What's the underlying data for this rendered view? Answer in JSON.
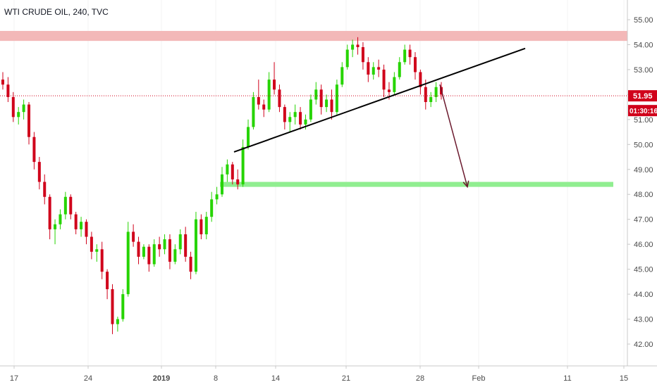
{
  "header": {
    "title": "WTI CRUDE OIL, 240, TVC"
  },
  "colors": {
    "up": "#26d400",
    "down": "#d0021b",
    "resistance_zone": "#f3b8b8",
    "target_zone": "#90ee90",
    "price_line": "#d0021b",
    "trendline": "#000000",
    "arrow": "#6b1a2e"
  },
  "chart_data": {
    "type": "candlestick",
    "title": "WTI CRUDE OIL, 240, TVC",
    "xlabel": "",
    "ylabel": "",
    "ylim": [
      41.4,
      55.4
    ],
    "y_ticks": [
      "55.00",
      "54.00",
      "53.00",
      "52.00",
      "51.00",
      "50.00",
      "49.00",
      "48.00",
      "47.00",
      "46.00",
      "45.00",
      "44.00",
      "43.00",
      "42.00"
    ],
    "x_ticks": [
      "17",
      "24",
      "2019",
      "8",
      "14",
      "21",
      "28",
      "Feb",
      "11",
      "15"
    ],
    "bold_x_ticks": [
      "2019"
    ],
    "last_price": "51.95",
    "countdown": "01:30:16",
    "resistance_zone": [
      54.15,
      54.55
    ],
    "target_zone": [
      48.3,
      48.5
    ],
    "trendline": {
      "start": [
        "Jan 9",
        49.7
      ],
      "end": [
        "Feb 13",
        53.85
      ]
    },
    "projection_arrow": {
      "start": [
        "Jan 30",
        52.4
      ],
      "end": [
        "Feb 3",
        48.3
      ]
    },
    "series": [
      {
        "ohlc": [
          [
            52.6,
            52.9,
            52.2,
            52.4
          ],
          [
            52.4,
            52.7,
            51.7,
            51.9
          ],
          [
            51.9,
            52.1,
            50.9,
            51.1
          ],
          [
            51.1,
            51.5,
            50.8,
            51.3
          ],
          [
            51.3,
            51.8,
            51.0,
            51.6
          ],
          [
            51.6,
            51.7,
            50.0,
            50.3
          ],
          [
            50.3,
            50.5,
            49.0,
            49.3
          ],
          [
            49.3,
            49.5,
            48.2,
            48.5
          ],
          [
            48.5,
            48.8,
            47.6,
            47.9
          ],
          [
            47.9,
            48.0,
            46.2,
            46.6
          ],
          [
            46.6,
            47.0,
            46.0,
            46.8
          ],
          [
            46.8,
            47.4,
            46.6,
            47.2
          ],
          [
            47.2,
            48.1,
            47.0,
            47.9
          ],
          [
            47.9,
            48.0,
            47.0,
            47.2
          ],
          [
            47.2,
            47.3,
            46.4,
            46.6
          ],
          [
            46.6,
            47.1,
            46.3,
            46.9
          ],
          [
            46.9,
            47.0,
            46.0,
            46.3
          ],
          [
            46.3,
            46.5,
            45.4,
            45.7
          ],
          [
            45.7,
            46.0,
            45.3,
            45.8
          ],
          [
            45.8,
            46.1,
            44.6,
            44.9
          ],
          [
            44.9,
            45.0,
            43.8,
            44.2
          ],
          [
            44.2,
            44.4,
            42.4,
            42.8
          ],
          [
            42.8,
            43.1,
            42.5,
            43.0
          ],
          [
            43.0,
            44.2,
            42.9,
            44.0
          ],
          [
            44.0,
            46.9,
            43.9,
            46.5
          ],
          [
            46.5,
            46.8,
            45.9,
            46.1
          ],
          [
            46.1,
            46.3,
            45.2,
            45.5
          ],
          [
            45.5,
            46.0,
            45.4,
            45.9
          ],
          [
            45.9,
            46.0,
            44.9,
            45.2
          ],
          [
            45.2,
            46.2,
            45.1,
            46.0
          ],
          [
            46.0,
            46.3,
            45.5,
            45.8
          ],
          [
            45.8,
            46.4,
            45.6,
            46.2
          ],
          [
            46.2,
            46.4,
            45.0,
            45.3
          ],
          [
            45.3,
            46.0,
            45.2,
            45.8
          ],
          [
            45.8,
            46.6,
            45.6,
            46.4
          ],
          [
            46.4,
            46.7,
            45.3,
            45.5
          ],
          [
            45.5,
            45.7,
            44.6,
            44.9
          ],
          [
            44.9,
            47.3,
            44.8,
            47.0
          ],
          [
            47.0,
            47.2,
            46.2,
            46.4
          ],
          [
            46.4,
            47.3,
            46.2,
            47.1
          ],
          [
            47.1,
            48.1,
            46.9,
            47.8
          ],
          [
            47.8,
            48.3,
            47.6,
            48.0
          ],
          [
            48.0,
            49.1,
            47.9,
            48.8
          ],
          [
            48.8,
            49.4,
            48.5,
            49.2
          ],
          [
            49.2,
            49.3,
            48.4,
            48.6
          ],
          [
            48.6,
            49.0,
            48.2,
            48.4
          ],
          [
            48.4,
            50.2,
            48.3,
            49.9
          ],
          [
            49.9,
            51.0,
            49.8,
            50.7
          ],
          [
            50.7,
            52.1,
            50.6,
            51.9
          ],
          [
            51.9,
            52.6,
            51.4,
            51.6
          ],
          [
            51.6,
            51.8,
            51.1,
            51.4
          ],
          [
            51.4,
            52.9,
            51.3,
            52.6
          ],
          [
            52.6,
            53.3,
            52.0,
            52.2
          ],
          [
            52.2,
            52.4,
            51.3,
            51.5
          ],
          [
            51.5,
            51.6,
            50.6,
            50.9
          ],
          [
            50.9,
            51.3,
            50.5,
            51.1
          ],
          [
            51.1,
            51.6,
            50.8,
            51.3
          ],
          [
            51.3,
            51.5,
            50.6,
            50.8
          ],
          [
            50.8,
            51.2,
            50.6,
            51.0
          ],
          [
            51.0,
            52.0,
            50.9,
            51.8
          ],
          [
            51.8,
            52.5,
            51.6,
            52.2
          ],
          [
            52.2,
            52.4,
            51.2,
            51.5
          ],
          [
            51.5,
            52.0,
            51.3,
            51.8
          ],
          [
            51.8,
            52.2,
            51.0,
            51.3
          ],
          [
            51.3,
            52.6,
            51.2,
            52.4
          ],
          [
            52.4,
            53.3,
            52.3,
            53.1
          ],
          [
            53.1,
            54.0,
            53.0,
            53.8
          ],
          [
            53.8,
            54.2,
            53.5,
            54.0
          ],
          [
            54.0,
            54.3,
            53.6,
            53.9
          ],
          [
            53.9,
            54.1,
            53.0,
            53.3
          ],
          [
            53.3,
            53.5,
            52.5,
            52.8
          ],
          [
            52.8,
            53.3,
            52.6,
            53.1
          ],
          [
            53.1,
            53.4,
            52.7,
            53.0
          ],
          [
            53.0,
            53.2,
            51.9,
            52.2
          ],
          [
            52.2,
            52.5,
            51.8,
            52.1
          ],
          [
            52.1,
            52.9,
            52.0,
            52.7
          ],
          [
            52.7,
            53.5,
            52.6,
            53.3
          ],
          [
            53.3,
            54.0,
            53.2,
            53.8
          ],
          [
            53.8,
            54.0,
            53.2,
            53.5
          ],
          [
            53.5,
            53.7,
            52.6,
            52.9
          ],
          [
            52.9,
            53.0,
            52.0,
            52.3
          ],
          [
            52.3,
            52.6,
            51.4,
            51.7
          ],
          [
            51.7,
            52.1,
            51.5,
            51.9
          ],
          [
            51.9,
            52.5,
            51.7,
            52.3
          ],
          [
            52.3,
            52.5,
            51.8,
            52.0
          ]
        ]
      }
    ]
  }
}
